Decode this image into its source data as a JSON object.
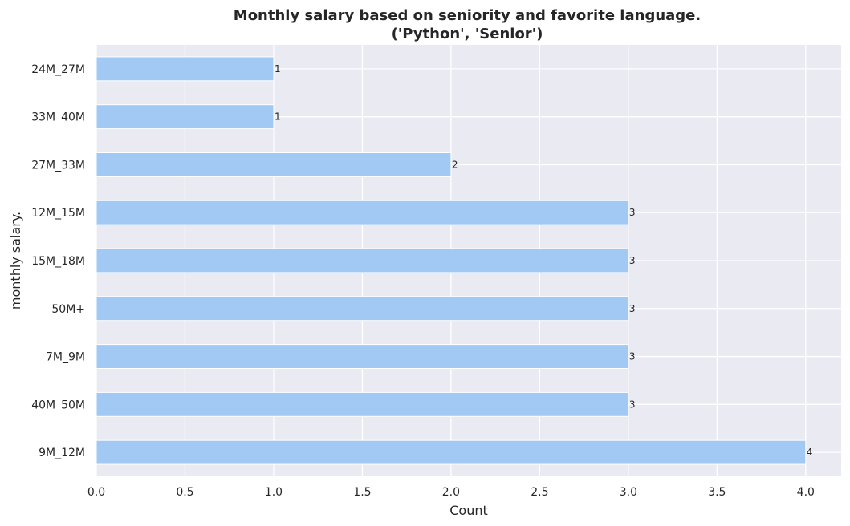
{
  "chart_data": {
    "type": "bar",
    "orientation": "horizontal",
    "title_line1": "Monthly salary based on seniority and favorite language.",
    "title_line2": "('Python', 'Senior')",
    "xlabel": "Count",
    "ylabel": "monthly salary.",
    "categories": [
      "24M_27M",
      "33M_40M",
      "27M_33M",
      "12M_15M",
      "15M_18M",
      "50M+",
      "7M_9M",
      "40M_50M",
      "9M_12M"
    ],
    "values": [
      1,
      1,
      2,
      3,
      3,
      3,
      3,
      3,
      4
    ],
    "data_labels": [
      "1",
      "1",
      "2",
      "3",
      "3",
      "3",
      "3",
      "3",
      "4"
    ],
    "xlim": [
      0,
      4.2
    ],
    "xticks": [
      0.0,
      0.5,
      1.0,
      1.5,
      2.0,
      2.5,
      3.0,
      3.5,
      4.0
    ],
    "xtick_labels": [
      "0.0",
      "0.5",
      "1.0",
      "1.5",
      "2.0",
      "2.5",
      "3.0",
      "3.5",
      "4.0"
    ],
    "grid": true,
    "colors": {
      "bar": "#a1c9f4",
      "plot_bg": "#eaeaf2",
      "grid": "#ffffff",
      "text": "#262626"
    }
  }
}
